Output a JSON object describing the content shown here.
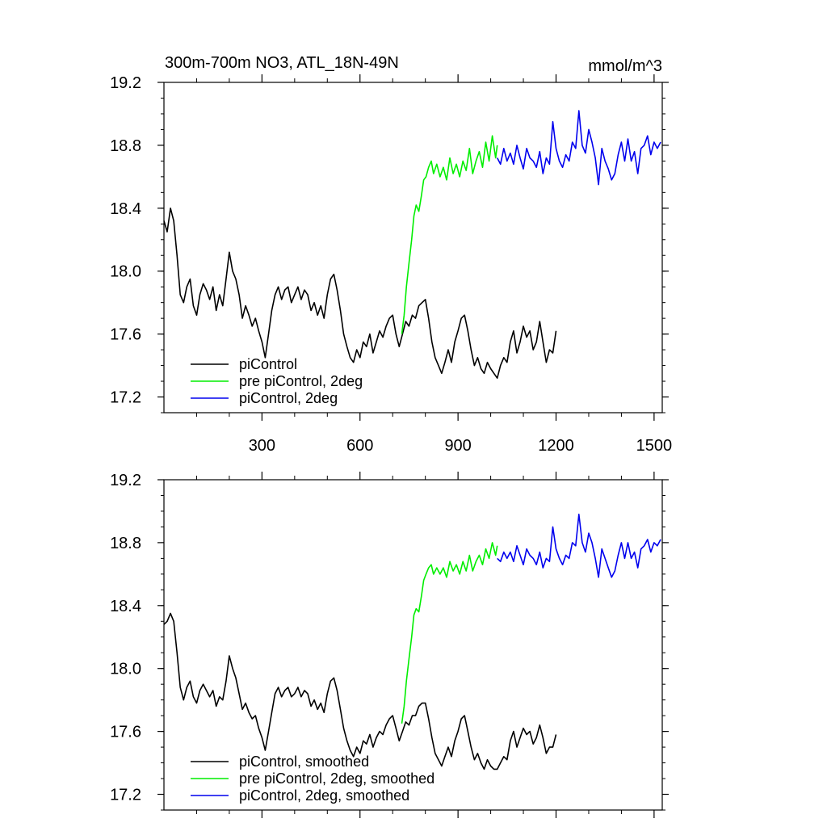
{
  "chart_data": [
    {
      "type": "line",
      "title": "300m-700m NO3, ATL_18N-49N",
      "units": "mmol/m^3",
      "xlim": [
        0,
        1525
      ],
      "ylim": [
        17.1,
        19.2
      ],
      "yticks": [
        "17.2",
        "17.6",
        "18.0",
        "18.4",
        "18.8",
        "19.2"
      ],
      "xticks": [
        "300",
        "600",
        "900",
        "1200",
        "1500"
      ],
      "legend_position": "bottom-left",
      "series": [
        {
          "name": "piControl",
          "color": "#000000",
          "x": [
            0,
            10,
            20,
            30,
            40,
            50,
            60,
            70,
            80,
            90,
            100,
            110,
            120,
            130,
            140,
            150,
            160,
            170,
            180,
            190,
            200,
            210,
            220,
            230,
            240,
            250,
            260,
            270,
            280,
            290,
            300,
            310,
            320,
            330,
            340,
            350,
            360,
            370,
            380,
            390,
            400,
            410,
            420,
            430,
            440,
            450,
            460,
            470,
            480,
            490,
            500,
            510,
            520,
            530,
            540,
            550,
            560,
            570,
            580,
            590,
            600,
            610,
            620,
            630,
            640,
            650,
            660,
            670,
            680,
            690,
            700,
            710,
            720,
            730,
            740,
            750,
            760,
            770,
            780,
            790,
            800,
            810,
            820,
            830,
            840,
            850,
            860,
            870,
            880,
            890,
            900,
            910,
            920,
            930,
            940,
            950,
            960,
            970,
            980,
            990,
            1000,
            1010,
            1020,
            1030,
            1040,
            1050,
            1060,
            1070,
            1080,
            1090,
            1100,
            1110,
            1120,
            1130,
            1140,
            1150,
            1160,
            1170,
            1180,
            1190,
            1200
          ],
          "values": [
            18.32,
            18.25,
            18.4,
            18.32,
            18.1,
            17.85,
            17.8,
            17.9,
            17.95,
            17.78,
            17.72,
            17.85,
            17.92,
            17.88,
            17.82,
            17.9,
            17.75,
            17.85,
            17.78,
            17.95,
            18.12,
            18.0,
            17.95,
            17.85,
            17.7,
            17.78,
            17.72,
            17.65,
            17.7,
            17.62,
            17.55,
            17.45,
            17.6,
            17.75,
            17.85,
            17.9,
            17.82,
            17.88,
            17.9,
            17.8,
            17.85,
            17.9,
            17.82,
            17.88,
            17.85,
            17.75,
            17.8,
            17.72,
            17.78,
            17.7,
            17.85,
            17.95,
            17.98,
            17.88,
            17.75,
            17.6,
            17.52,
            17.45,
            17.42,
            17.5,
            17.45,
            17.55,
            17.52,
            17.6,
            17.48,
            17.55,
            17.62,
            17.58,
            17.65,
            17.7,
            17.72,
            17.6,
            17.52,
            17.6,
            17.68,
            17.65,
            17.72,
            17.7,
            17.78,
            17.8,
            17.82,
            17.7,
            17.55,
            17.45,
            17.4,
            17.35,
            17.42,
            17.5,
            17.42,
            17.55,
            17.62,
            17.7,
            17.72,
            17.62,
            17.5,
            17.4,
            17.45,
            17.38,
            17.35,
            17.42,
            17.38,
            17.35,
            17.32,
            17.4,
            17.45,
            17.42,
            17.55,
            17.62,
            17.48,
            17.55,
            17.65,
            17.58,
            17.62,
            17.5,
            17.55,
            17.68,
            17.55,
            17.42,
            17.5,
            17.48,
            17.62
          ]
        },
        {
          "name": "pre piControl, 2deg",
          "color": "#00ee00",
          "x": [
            728,
            735,
            742,
            750,
            758,
            765,
            772,
            780,
            788,
            795,
            802,
            810,
            818,
            825,
            835,
            845,
            855,
            865,
            875,
            885,
            895,
            905,
            915,
            925,
            935,
            945,
            955,
            965,
            975,
            985,
            995,
            1005,
            1015,
            1020
          ],
          "values": [
            17.6,
            17.72,
            17.9,
            18.05,
            18.2,
            18.35,
            18.42,
            18.38,
            18.48,
            18.58,
            18.6,
            18.66,
            18.7,
            18.62,
            18.68,
            18.6,
            18.66,
            18.58,
            18.72,
            18.62,
            18.68,
            18.6,
            18.7,
            18.64,
            18.78,
            18.62,
            18.7,
            18.76,
            18.66,
            18.82,
            18.7,
            18.86,
            18.72,
            18.8
          ]
        },
        {
          "name": "piControl, 2deg",
          "color": "#0000ee",
          "x": [
            1020,
            1030,
            1040,
            1050,
            1060,
            1070,
            1080,
            1090,
            1100,
            1110,
            1120,
            1130,
            1140,
            1150,
            1160,
            1170,
            1180,
            1190,
            1200,
            1210,
            1220,
            1230,
            1240,
            1250,
            1260,
            1270,
            1280,
            1290,
            1300,
            1310,
            1320,
            1330,
            1340,
            1350,
            1360,
            1370,
            1380,
            1390,
            1400,
            1410,
            1420,
            1430,
            1440,
            1450,
            1460,
            1470,
            1480,
            1490,
            1500,
            1510,
            1520
          ],
          "values": [
            18.72,
            18.68,
            18.78,
            18.7,
            18.75,
            18.68,
            18.8,
            18.72,
            18.65,
            18.78,
            18.72,
            18.7,
            18.66,
            18.76,
            18.62,
            18.72,
            18.68,
            18.95,
            18.78,
            18.7,
            18.66,
            18.74,
            18.7,
            18.82,
            18.78,
            19.02,
            18.8,
            18.75,
            18.9,
            18.82,
            18.72,
            18.55,
            18.78,
            18.7,
            18.65,
            18.58,
            18.62,
            18.74,
            18.82,
            18.7,
            18.84,
            18.7,
            18.76,
            18.62,
            18.78,
            18.8,
            18.86,
            18.74,
            18.82,
            18.78,
            18.82
          ]
        }
      ],
      "legend": [
        {
          "label": "piControl",
          "color": "#000000"
        },
        {
          "label": "pre piControl, 2deg",
          "color": "#00ee00"
        },
        {
          "label": "piControl, 2deg",
          "color": "#0000ee"
        }
      ]
    },
    {
      "type": "line",
      "title": "",
      "xlim": [
        0,
        1525
      ],
      "ylim": [
        17.1,
        19.2
      ],
      "yticks": [
        "17.2",
        "17.6",
        "18.0",
        "18.4",
        "18.8",
        "19.2"
      ],
      "xticks": [],
      "legend_position": "bottom-left",
      "series": [
        {
          "name": "piControl, smoothed",
          "color": "#000000",
          "x": [
            0,
            10,
            20,
            30,
            40,
            50,
            60,
            70,
            80,
            90,
            100,
            110,
            120,
            130,
            140,
            150,
            160,
            170,
            180,
            190,
            200,
            210,
            220,
            230,
            240,
            250,
            260,
            270,
            280,
            290,
            300,
            310,
            320,
            330,
            340,
            350,
            360,
            370,
            380,
            390,
            400,
            410,
            420,
            430,
            440,
            450,
            460,
            470,
            480,
            490,
            500,
            510,
            520,
            530,
            540,
            550,
            560,
            570,
            580,
            590,
            600,
            610,
            620,
            630,
            640,
            650,
            660,
            670,
            680,
            690,
            700,
            710,
            720,
            730,
            740,
            750,
            760,
            770,
            780,
            790,
            800,
            810,
            820,
            830,
            840,
            850,
            860,
            870,
            880,
            890,
            900,
            910,
            920,
            930,
            940,
            950,
            960,
            970,
            980,
            990,
            1000,
            1010,
            1020,
            1030,
            1040,
            1050,
            1060,
            1070,
            1080,
            1090,
            1100,
            1110,
            1120,
            1130,
            1140,
            1150,
            1160,
            1170,
            1180,
            1190,
            1200
          ],
          "values": [
            18.28,
            18.3,
            18.35,
            18.3,
            18.1,
            17.88,
            17.8,
            17.88,
            17.92,
            17.82,
            17.78,
            17.86,
            17.9,
            17.86,
            17.82,
            17.86,
            17.76,
            17.82,
            17.8,
            17.92,
            18.08,
            18.0,
            17.94,
            17.84,
            17.74,
            17.78,
            17.72,
            17.68,
            17.7,
            17.62,
            17.56,
            17.48,
            17.6,
            17.72,
            17.84,
            17.88,
            17.82,
            17.86,
            17.88,
            17.82,
            17.84,
            17.88,
            17.82,
            17.86,
            17.84,
            17.76,
            17.8,
            17.74,
            17.78,
            17.72,
            17.84,
            17.92,
            17.94,
            17.86,
            17.74,
            17.62,
            17.54,
            17.48,
            17.44,
            17.5,
            17.46,
            17.54,
            17.52,
            17.58,
            17.5,
            17.56,
            17.6,
            17.58,
            17.64,
            17.68,
            17.7,
            17.62,
            17.54,
            17.6,
            17.66,
            17.64,
            17.7,
            17.7,
            17.76,
            17.78,
            17.78,
            17.68,
            17.56,
            17.46,
            17.42,
            17.38,
            17.44,
            17.5,
            17.44,
            17.54,
            17.6,
            17.68,
            17.7,
            17.6,
            17.5,
            17.42,
            17.46,
            17.4,
            17.36,
            17.42,
            17.38,
            17.36,
            17.36,
            17.4,
            17.44,
            17.42,
            17.54,
            17.6,
            17.5,
            17.56,
            17.62,
            17.58,
            17.6,
            17.52,
            17.56,
            17.64,
            17.56,
            17.46,
            17.5,
            17.5,
            17.58
          ]
        },
        {
          "name": "pre piControl, 2deg, smoothed",
          "color": "#00ee00",
          "x": [
            728,
            735,
            742,
            750,
            758,
            765,
            772,
            780,
            788,
            795,
            802,
            810,
            818,
            825,
            835,
            845,
            855,
            865,
            875,
            885,
            895,
            905,
            915,
            925,
            935,
            945,
            955,
            965,
            975,
            985,
            995,
            1005,
            1015,
            1020
          ],
          "values": [
            17.65,
            17.76,
            17.92,
            18.06,
            18.2,
            18.34,
            18.38,
            18.36,
            18.46,
            18.56,
            18.6,
            18.64,
            18.66,
            18.6,
            18.64,
            18.6,
            18.64,
            18.58,
            18.68,
            18.62,
            18.66,
            18.6,
            18.68,
            18.62,
            18.72,
            18.62,
            18.68,
            18.72,
            18.66,
            18.76,
            18.7,
            18.8,
            18.72,
            18.78
          ]
        },
        {
          "name": "piControl, 2deg, smoothed",
          "color": "#0000ee",
          "x": [
            1020,
            1030,
            1040,
            1050,
            1060,
            1070,
            1080,
            1090,
            1100,
            1110,
            1120,
            1130,
            1140,
            1150,
            1160,
            1170,
            1180,
            1190,
            1200,
            1210,
            1220,
            1230,
            1240,
            1250,
            1260,
            1270,
            1280,
            1290,
            1300,
            1310,
            1320,
            1330,
            1340,
            1350,
            1360,
            1370,
            1380,
            1390,
            1400,
            1410,
            1420,
            1430,
            1440,
            1450,
            1460,
            1470,
            1480,
            1490,
            1500,
            1510,
            1520
          ],
          "values": [
            18.7,
            18.68,
            18.74,
            18.7,
            18.74,
            18.68,
            18.78,
            18.72,
            18.66,
            18.76,
            18.72,
            18.7,
            18.66,
            18.74,
            18.64,
            18.7,
            18.68,
            18.9,
            18.76,
            18.7,
            18.66,
            18.72,
            18.7,
            18.8,
            18.78,
            18.98,
            18.8,
            18.74,
            18.86,
            18.8,
            18.7,
            18.58,
            18.76,
            18.7,
            18.64,
            18.58,
            18.62,
            18.72,
            18.8,
            18.7,
            18.8,
            18.7,
            18.74,
            18.64,
            18.76,
            18.78,
            18.82,
            18.74,
            18.8,
            18.78,
            18.82
          ]
        }
      ],
      "legend": [
        {
          "label": "piControl, smoothed",
          "color": "#000000"
        },
        {
          "label": "pre piControl, 2deg, smoothed",
          "color": "#00ee00"
        },
        {
          "label": "piControl, 2deg, smoothed",
          "color": "#0000ee"
        }
      ]
    }
  ]
}
